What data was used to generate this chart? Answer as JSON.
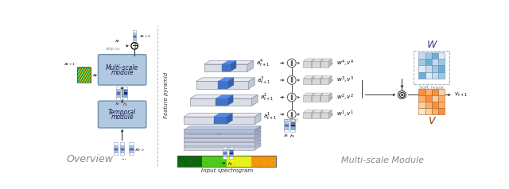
{
  "fig_width": 6.4,
  "fig_height": 2.38,
  "bg_color": "#ffffff",
  "box_color": "#b0c8e0",
  "box_edge": "#7090b0",
  "arrow_color": "#333333",
  "text_color": "#333333",
  "gray_text": "#777777",
  "pyr_face": "#d8dde6",
  "pyr_edge": "#9090a0",
  "pyr_face_top": "#e8ecf2",
  "pyr_face_right": "#c0c8d4",
  "blue_stripe": "#4472c4",
  "blue_stripe_top": "#5588dd",
  "blue_stripe_right": "#3360b0",
  "cube_face": "#d8d8d8",
  "cube_top": "#e8e8e8",
  "cube_right": "#b8b8b8",
  "cube_edge": "#a0a0a0",
  "W_colors": [
    "#c6dbef",
    "#9ecae1",
    "#6baed6",
    "#deebf7",
    "#9ecae1",
    "#6baed6",
    "#c6dbef",
    "#9ecae1",
    "#deebf7",
    "#c6dbef",
    "#9ecae1",
    "#6baed6",
    "#6baed6",
    "#deebf7",
    "#c6dbef",
    "#9ecae1"
  ],
  "V_colors": [
    "#fd8d3c",
    "#fdae6b",
    "#fd8d3c",
    "#fdd0a2",
    "#fdae6b",
    "#fd8d3c",
    "#fdd0a2",
    "#fdae6b",
    "#fdd0a2",
    "#fdae6b",
    "#fd8d3c",
    "#fdae6b",
    "#fee6ce",
    "#fdd0a2",
    "#fdae6b",
    "#fd8d3c"
  ],
  "overview_label": "Overview",
  "multiscale_module_label": "Multi-scale\nmodule",
  "temporal_module_label": "Temporal\nmodule",
  "feature_pyramid_label": "Feature pyramid",
  "input_spec_label": "Input spectrogram",
  "soft_mask_label": "Soft mask",
  "W_label": "W",
  "V_label": "V",
  "concat_label": "concat.",
  "multiscale_section_label": "Multi-scale Module",
  "pyramid_labels": [
    "$a^4_{t+1}$",
    "$a^3_{t+1}$",
    "$a^2_{t+1}$",
    "$a^1_{t+1}$"
  ],
  "weight_labels": [
    "$w^4, v^4$",
    "$w^3, v^3$",
    "$w^2, v^2$",
    "$w^1, v^1$"
  ]
}
